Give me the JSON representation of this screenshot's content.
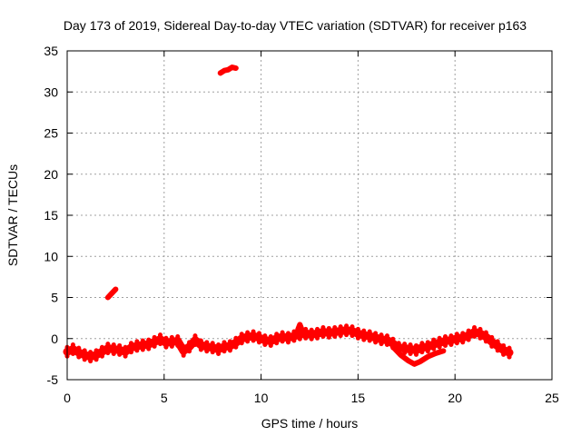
{
  "chart_data": {
    "type": "scatter",
    "title": "Day 173 of 2019, Sidereal Day-to-day VTEC variation (SDTVAR) for receiver p163",
    "xlabel": "GPS time / hours",
    "ylabel": "SDTVAR / TECUs",
    "xlim": [
      0,
      25
    ],
    "ylim": [
      -5,
      35
    ],
    "xticks": [
      0,
      5,
      10,
      15,
      20,
      25
    ],
    "yticks": [
      -5,
      0,
      5,
      10,
      15,
      20,
      25,
      30,
      35
    ],
    "grid": true,
    "series": [
      {
        "name": "SDTVAR",
        "color": "#ff0000",
        "band_halfwidth": 0.55,
        "points": [
          [
            0.0,
            -1.6
          ],
          [
            0.3,
            -1.3
          ],
          [
            0.6,
            -1.7
          ],
          [
            0.9,
            -2.0
          ],
          [
            1.2,
            -2.2
          ],
          [
            1.5,
            -2.0
          ],
          [
            1.8,
            -1.6
          ],
          [
            2.1,
            -1.2
          ],
          [
            2.4,
            -1.3
          ],
          [
            2.7,
            -1.4
          ],
          [
            3.0,
            -1.6
          ],
          [
            3.3,
            -1.1
          ],
          [
            3.6,
            -0.9
          ],
          [
            3.9,
            -0.8
          ],
          [
            4.2,
            -0.7
          ],
          [
            4.5,
            -0.4
          ],
          [
            4.8,
            -0.1
          ],
          [
            5.1,
            -0.5
          ],
          [
            5.4,
            -0.4
          ],
          [
            5.7,
            -0.3
          ],
          [
            6.0,
            -1.5
          ],
          [
            6.3,
            -1.0
          ],
          [
            6.6,
            -0.2
          ],
          [
            6.9,
            -0.8
          ],
          [
            7.2,
            -1.0
          ],
          [
            7.5,
            -1.1
          ],
          [
            7.8,
            -1.3
          ],
          [
            8.1,
            -1.0
          ],
          [
            8.4,
            -0.9
          ],
          [
            8.7,
            -0.5
          ],
          [
            9.0,
            0.0
          ],
          [
            9.3,
            0.2
          ],
          [
            9.6,
            0.3
          ],
          [
            9.9,
            0.1
          ],
          [
            10.2,
            -0.2
          ],
          [
            10.5,
            -0.3
          ],
          [
            10.8,
            0.0
          ],
          [
            11.1,
            0.2
          ],
          [
            11.4,
            0.1
          ],
          [
            11.7,
            0.3
          ],
          [
            12.0,
            0.5
          ],
          [
            12.3,
            0.6
          ],
          [
            12.6,
            0.5
          ],
          [
            12.9,
            0.6
          ],
          [
            13.2,
            0.8
          ],
          [
            13.5,
            0.7
          ],
          [
            13.8,
            0.8
          ],
          [
            14.1,
            0.9
          ],
          [
            14.4,
            1.0
          ],
          [
            14.7,
            0.9
          ],
          [
            15.0,
            0.6
          ],
          [
            15.3,
            0.4
          ],
          [
            15.6,
            0.3
          ],
          [
            15.9,
            0.1
          ],
          [
            16.2,
            -0.1
          ],
          [
            16.5,
            -0.2
          ],
          [
            16.8,
            -0.6
          ],
          [
            17.1,
            -1.1
          ],
          [
            17.4,
            -1.2
          ],
          [
            17.7,
            -1.3
          ],
          [
            18.0,
            -1.4
          ],
          [
            18.3,
            -1.1
          ],
          [
            18.6,
            -1.0
          ],
          [
            18.9,
            -0.7
          ],
          [
            19.2,
            -0.5
          ],
          [
            19.5,
            -0.3
          ],
          [
            19.8,
            -0.2
          ],
          [
            20.1,
            0.0
          ],
          [
            20.4,
            0.1
          ],
          [
            20.7,
            0.4
          ],
          [
            21.0,
            0.8
          ],
          [
            21.3,
            0.6
          ],
          [
            21.6,
            0.2
          ],
          [
            21.9,
            -0.4
          ],
          [
            22.2,
            -0.9
          ],
          [
            22.5,
            -1.4
          ],
          [
            22.8,
            -1.7
          ]
        ],
        "branches": [
          {
            "name": "dip-lower-branch",
            "points": [
              [
                16.8,
                -1.0
              ],
              [
                17.2,
                -2.0
              ],
              [
                17.6,
                -2.7
              ],
              [
                17.9,
                -3.1
              ],
              [
                18.2,
                -2.8
              ],
              [
                18.6,
                -2.2
              ],
              [
                19.0,
                -1.8
              ],
              [
                19.4,
                -1.5
              ]
            ]
          },
          {
            "name": "spike-12h",
            "points": [
              [
                11.9,
                1.1
              ],
              [
                12.0,
                1.7
              ],
              [
                12.1,
                1.1
              ]
            ]
          },
          {
            "name": "isolated-cluster-2h",
            "points": [
              [
                2.1,
                5.0
              ],
              [
                2.3,
                5.5
              ],
              [
                2.5,
                6.0
              ]
            ]
          },
          {
            "name": "isolated-cluster-8h",
            "points": [
              [
                7.9,
                32.3
              ],
              [
                8.1,
                32.6
              ],
              [
                8.3,
                32.7
              ],
              [
                8.5,
                33.0
              ],
              [
                8.7,
                32.9
              ]
            ]
          }
        ]
      }
    ]
  }
}
